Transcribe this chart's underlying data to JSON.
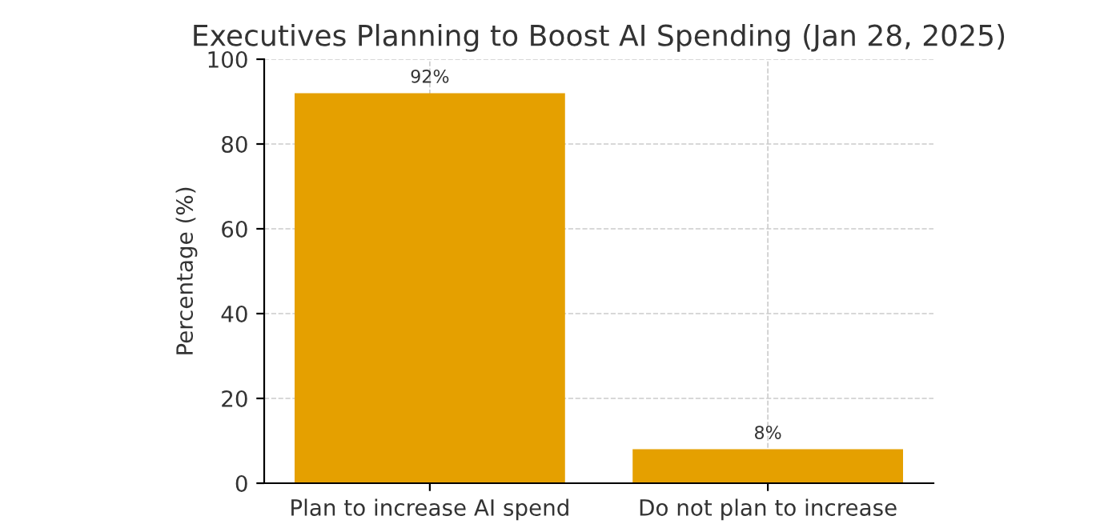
{
  "chart_data": {
    "type": "bar",
    "title": "Executives Planning to Boost AI Spending (Jan 28, 2025)",
    "ylabel": "Percentage (%)",
    "categories": [
      "Plan to increase AI spend",
      "Do not plan to increase"
    ],
    "values": [
      92,
      8
    ],
    "value_labels": [
      "92%",
      "8%"
    ],
    "color": "#e5a000",
    "ylim": [
      0,
      100
    ],
    "yticks": [
      0,
      20,
      40,
      60,
      80,
      100
    ],
    "grid": true
  }
}
